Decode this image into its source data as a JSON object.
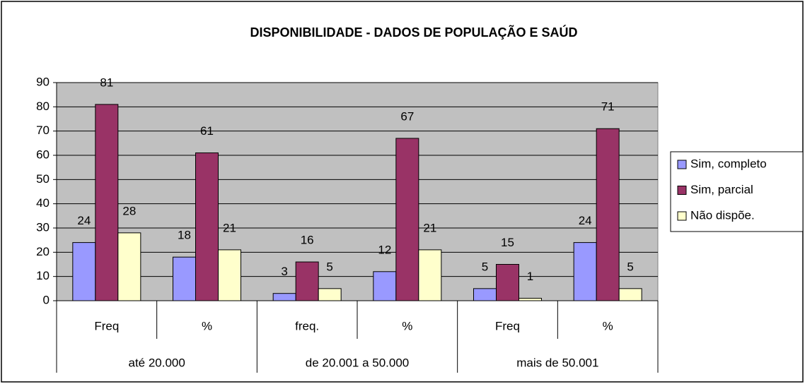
{
  "chart_data": {
    "type": "bar",
    "title": "DISPONIBILIDADE - DADOS DE POPULAÇÃO E SAÚD",
    "categories": [
      "Freq",
      "%",
      "freq.",
      "%",
      "Freq",
      "%"
    ],
    "category_groups": [
      "até 20.000",
      "de 20.001 a 50.000",
      "mais de 50.001"
    ],
    "series": [
      {
        "name": "Sim, completo",
        "color": "#9999ff",
        "values": [
          24,
          18,
          3,
          12,
          5,
          24
        ]
      },
      {
        "name": "Sim, parcial",
        "color": "#993366",
        "values": [
          81,
          61,
          16,
          67,
          15,
          71
        ]
      },
      {
        "name": "Não dispõe.",
        "color": "#ffffcc",
        "values": [
          28,
          21,
          5,
          21,
          1,
          5
        ]
      }
    ],
    "ylim": [
      0,
      90
    ],
    "yticks": [
      0,
      10,
      20,
      30,
      40,
      50,
      60,
      70,
      80,
      90
    ],
    "grid": true,
    "legend": "right",
    "plot_background": "#c0c0c0"
  }
}
